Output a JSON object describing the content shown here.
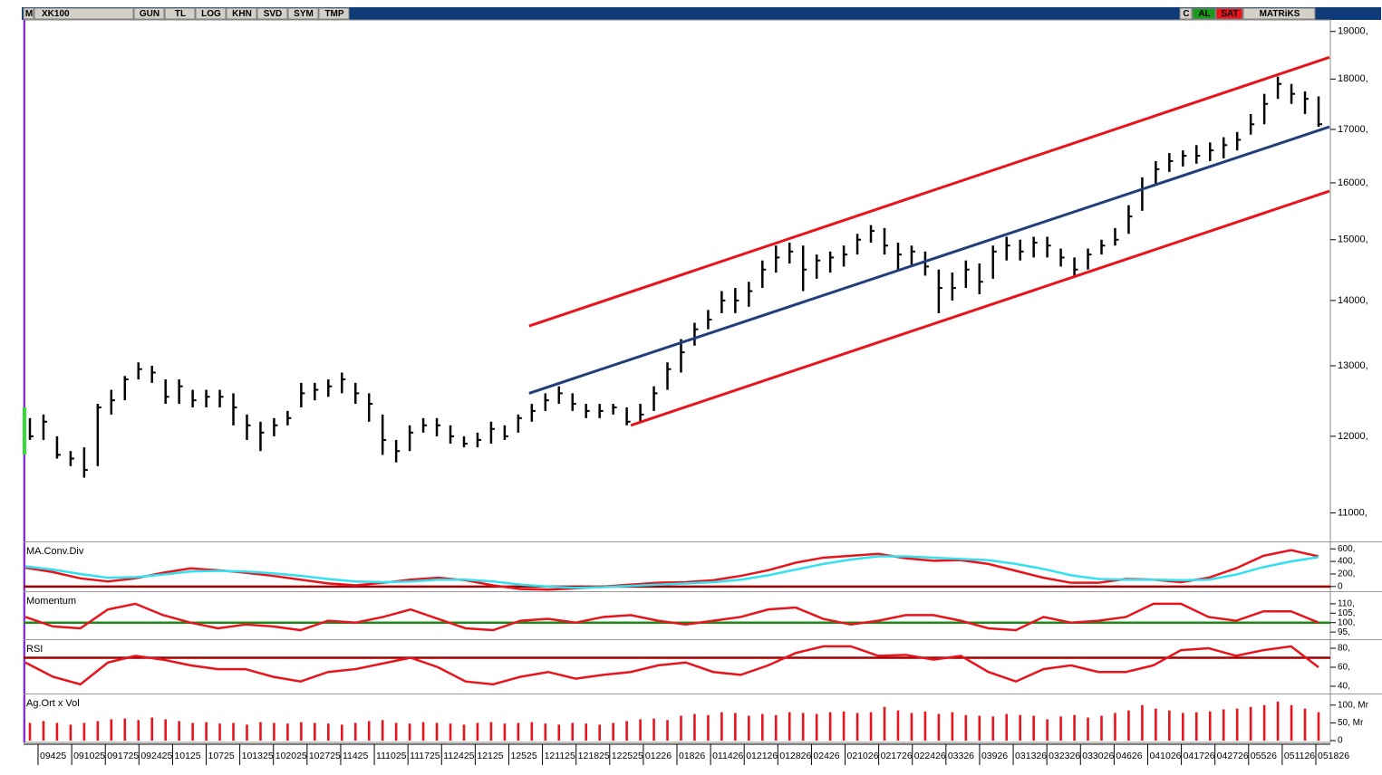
{
  "toolbar": {
    "items": [
      "M",
      "XK100",
      "GUN",
      "TL",
      "LOG",
      "KHN",
      "SVD",
      "SYM",
      "TMP"
    ],
    "right": [
      "C",
      "AL",
      "SAT",
      "MATRiKS"
    ]
  },
  "chart_data": {
    "type": "ohlc",
    "log": true,
    "color": "#000000",
    "ylim": [
      10650,
      19250
    ],
    "yticks": [
      {
        "value": 11000,
        "label": "11000,"
      },
      {
        "value": 12000,
        "label": "12000,"
      },
      {
        "value": 13000,
        "label": "13000,"
      },
      {
        "value": 14000,
        "label": "14000,"
      },
      {
        "value": 15000,
        "label": "15000,"
      },
      {
        "value": 16000,
        "label": "16000,"
      },
      {
        "value": 17000,
        "label": "17000,"
      },
      {
        "value": 18000,
        "label": "18000,"
      },
      {
        "value": 19000,
        "label": "19000,"
      }
    ],
    "categories": [
      "09425",
      "091025",
      "091725",
      "092425",
      "10125",
      "10725",
      "101325",
      "102025",
      "102725",
      "11425",
      "111025",
      "111725",
      "112425",
      "12125",
      "12525",
      "121125",
      "121825",
      "122525",
      "01226",
      "01826",
      "011426",
      "012126",
      "012826",
      "02426",
      "021026",
      "021726",
      "022426",
      "03326",
      "03926",
      "031326",
      "032326",
      "033026",
      "04626",
      "041026",
      "041726",
      "042726",
      "05526",
      "051126",
      "051826"
    ],
    "close": [
      12000,
      12200,
      11750,
      11700,
      11550,
      12400,
      12500,
      12800,
      12950,
      12900,
      12550,
      12700,
      12500,
      12550,
      12550,
      12400,
      12150,
      12050,
      12150,
      12250,
      12600,
      12650,
      12700,
      12800,
      12600,
      12450,
      11950,
      11800,
      12050,
      12150,
      12150,
      12000,
      11900,
      11950,
      12100,
      12000,
      12250,
      12350,
      12500,
      12600,
      12450,
      12350,
      12350,
      12400,
      12200,
      12300,
      12600,
      12950,
      13200,
      13550,
      13700,
      14000,
      14000,
      14150,
      14500,
      14700,
      14800,
      14500,
      14650,
      14700,
      14750,
      15000,
      15150,
      14900,
      14750,
      14800,
      14550,
      14200,
      14200,
      14500,
      14300,
      14800,
      14900,
      14800,
      14950,
      14900,
      14700,
      14500,
      14750,
      14900,
      15000,
      15400,
      15900,
      16250,
      16400,
      16500,
      16500,
      16600,
      16700,
      16800,
      17100,
      17500,
      17900,
      17700,
      17600,
      17100
    ],
    "high": [
      12250,
      12300,
      12000,
      11800,
      11850,
      12450,
      12650,
      12850,
      13050,
      13000,
      12800,
      12800,
      12650,
      12650,
      12650,
      12600,
      12300,
      12200,
      12250,
      12350,
      12750,
      12750,
      12800,
      12900,
      12750,
      12600,
      12300,
      11950,
      12150,
      12250,
      12250,
      12150,
      12000,
      12050,
      12200,
      12150,
      12300,
      12450,
      12600,
      12700,
      12600,
      12450,
      12450,
      12450,
      12400,
      12450,
      12700,
      13050,
      13400,
      13650,
      13850,
      14150,
      14200,
      14300,
      14650,
      14900,
      14950,
      14900,
      14750,
      14800,
      14900,
      15100,
      15250,
      15200,
      14950,
      14900,
      14800,
      14500,
      14450,
      14650,
      14600,
      14900,
      15050,
      15000,
      15050,
      15050,
      14850,
      14700,
      14850,
      15000,
      15200,
      15600,
      16100,
      16400,
      16550,
      16600,
      16700,
      16750,
      16850,
      16950,
      17300,
      17700,
      18050,
      17900,
      17750,
      17650
    ],
    "low": [
      11950,
      11950,
      11700,
      11600,
      11450,
      11600,
      12300,
      12500,
      12800,
      12750,
      12450,
      12450,
      12400,
      12400,
      12400,
      12150,
      11950,
      11800,
      12000,
      12150,
      12400,
      12500,
      12550,
      12600,
      12450,
      12200,
      11750,
      11650,
      11800,
      12050,
      12000,
      11900,
      11850,
      11850,
      11900,
      11950,
      12050,
      12200,
      12350,
      12450,
      12350,
      12250,
      12250,
      12300,
      12150,
      12200,
      12350,
      12650,
      12900,
      13300,
      13550,
      13800,
      13800,
      13900,
      14200,
      14450,
      14600,
      14150,
      14350,
      14450,
      14550,
      14750,
      14950,
      14750,
      14500,
      14550,
      14400,
      13800,
      14000,
      14200,
      14100,
      14350,
      14650,
      14650,
      14700,
      14700,
      14550,
      14400,
      14500,
      14750,
      14900,
      15100,
      15500,
      15950,
      16200,
      16300,
      16350,
      16400,
      16450,
      16600,
      16900,
      17100,
      17600,
      17500,
      17300,
      17050
    ],
    "channels": [
      {
        "color": "#e8141b",
        "x": [
          36.8,
          95.8
        ],
        "values": [
          13600,
          18450
        ]
      },
      {
        "color": "#1f3e7a",
        "x": [
          36.8,
          95.8
        ],
        "values": [
          12600,
          17050
        ]
      },
      {
        "color": "#e8141b",
        "x": [
          44.3,
          95.8
        ],
        "values": [
          12150,
          15850
        ]
      }
    ],
    "panes": [
      {
        "type": "line",
        "title": "MA.Conv.Div",
        "ylim": [
          -60,
          690
        ],
        "yticks": [
          0,
          {
            "value": 200,
            "label": "200,"
          },
          {
            "value": 400,
            "label": "400,"
          },
          {
            "value": 600,
            "label": "600,"
          }
        ],
        "reference": 0,
        "reference_color": "#a00000",
        "series": [
          {
            "color": "#e8141b",
            "values": [
              300,
              230,
              130,
              80,
              130,
              220,
              290,
              260,
              220,
              170,
              110,
              50,
              20,
              60,
              110,
              140,
              100,
              20,
              -40,
              -50,
              -30,
              0,
              30,
              60,
              70,
              100,
              170,
              260,
              380,
              460,
              490,
              520,
              450,
              410,
              420,
              360,
              250,
              140,
              60,
              60,
              120,
              110,
              70,
              140,
              290,
              490,
              580,
              480
            ]
          },
          {
            "color": "#33e0f0",
            "values": [
              320,
              270,
              200,
              140,
              150,
              190,
              240,
              250,
              240,
              210,
              170,
              120,
              80,
              70,
              80,
              110,
              110,
              80,
              30,
              0,
              -20,
              -10,
              10,
              30,
              50,
              70,
              110,
              180,
              270,
              360,
              430,
              480,
              480,
              460,
              440,
              420,
              360,
              280,
              180,
              120,
              110,
              110,
              100,
              110,
              190,
              310,
              400,
              470
            ]
          }
        ]
      },
      {
        "type": "line",
        "title": "Momentum",
        "ylim": [
          91.7,
          115.7
        ],
        "yticks": [
          {
            "value": 95,
            "label": "95,"
          },
          {
            "value": 100,
            "label": "100,"
          },
          {
            "value": 105,
            "label": "105,"
          },
          {
            "value": 110,
            "label": "110,"
          }
        ],
        "reference": 100,
        "reference_color": "#1a8a1a",
        "series": [
          {
            "color": "#e8141b",
            "values": [
              103,
              98,
              97,
              107,
              110,
              104,
              100,
              97,
              99,
              98,
              96,
              101,
              100,
              103,
              107,
              102,
              97,
              96,
              101,
              102,
              100,
              103,
              104,
              101,
              99,
              101,
              103,
              107,
              108,
              102,
              99,
              101,
              104,
              104,
              101,
              97,
              96,
              103,
              100,
              101,
              103,
              110,
              110,
              103,
              101,
              106,
              106,
              100
            ]
          }
        ]
      },
      {
        "type": "line",
        "title": "RSI",
        "ylim": [
          33.3,
          87.6
        ],
        "yticks": [
          {
            "value": 40,
            "label": "40,"
          },
          {
            "value": 60,
            "label": "60,"
          },
          {
            "value": 80,
            "label": "80,"
          }
        ],
        "reference": 70,
        "reference_color": "#a00000",
        "series": [
          {
            "color": "#e8141b",
            "values": [
              65,
              50,
              42,
              65,
              72,
              68,
              62,
              58,
              58,
              50,
              45,
              55,
              58,
              64,
              70,
              60,
              45,
              42,
              50,
              55,
              48,
              52,
              55,
              62,
              65,
              55,
              52,
              62,
              75,
              82,
              82,
              72,
              73,
              68,
              72,
              55,
              45,
              58,
              62,
              55,
              55,
              62,
              78,
              80,
              72,
              78,
              82,
              60
            ]
          }
        ]
      },
      {
        "type": "bar",
        "title": "Ag.Ort x Vol",
        "ylim": [
          -5,
          127.5
        ],
        "yticks": [
          0,
          {
            "value": 50,
            "label": "50, Mr"
          },
          {
            "value": 100,
            "label": "100, Mr"
          }
        ],
        "color": "#e8141b",
        "values": [
          50,
          55,
          50,
          45,
          50,
          55,
          60,
          62,
          58,
          65,
          60,
          55,
          50,
          52,
          48,
          50,
          45,
          52,
          50,
          48,
          52,
          50,
          48,
          45,
          50,
          55,
          58,
          50,
          48,
          52,
          50,
          48,
          45,
          50,
          52,
          48,
          50,
          52,
          48,
          45,
          50,
          48,
          45,
          50,
          55,
          60,
          62,
          58,
          70,
          75,
          72,
          80,
          78,
          70,
          75,
          72,
          80,
          78,
          75,
          80,
          82,
          78,
          80,
          95,
          85,
          78,
          82,
          75,
          80,
          72,
          70,
          68,
          75,
          72,
          70,
          60,
          68,
          72,
          65,
          70,
          78,
          85,
          100,
          90,
          85,
          78,
          80,
          82,
          88,
          90,
          95,
          100,
          110,
          100,
          90,
          80
        ]
      }
    ]
  }
}
